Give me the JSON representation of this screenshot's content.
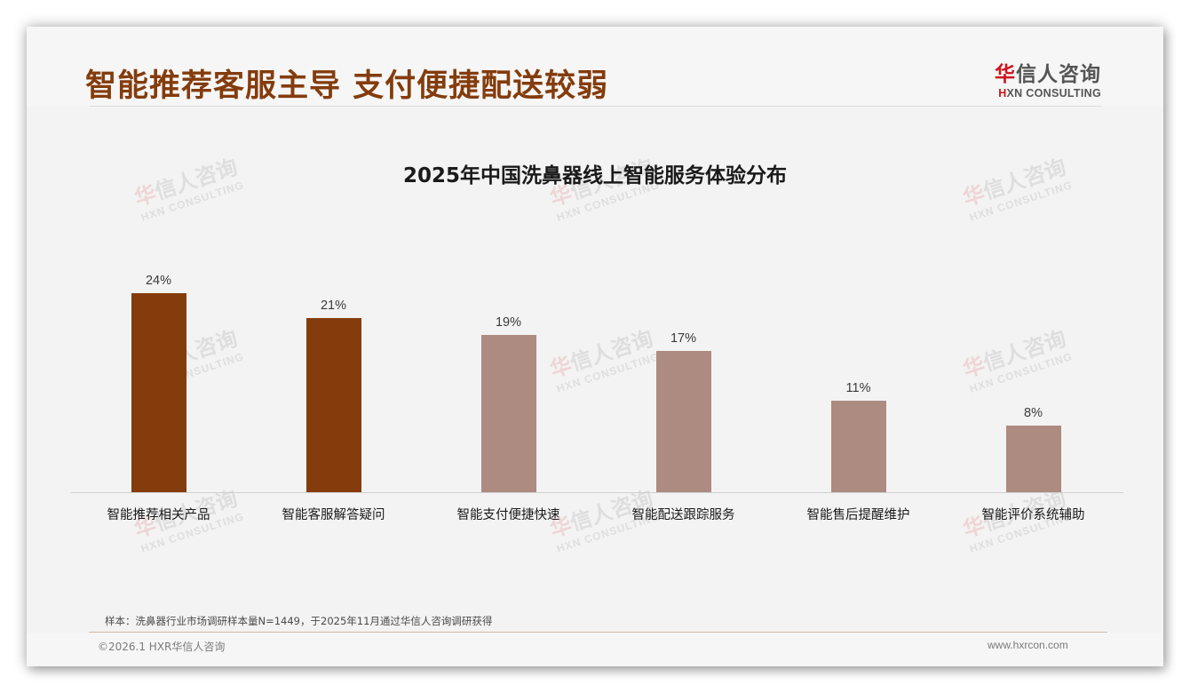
{
  "slide": {
    "title": "智能推荐客服主导 支付便捷配送较弱",
    "logo": {
      "cn_first": "华",
      "cn_rest": "信人咨询",
      "en_first": "H",
      "en_rest": "XN CONSULTING"
    },
    "watermark": {
      "cn_first": "华",
      "cn_rest": "信人咨询",
      "en": "HXN CONSULTING"
    },
    "note": "样本：洗鼻器行业市场调研样本量N=1449，于2025年11月通过华信人咨询调研获得",
    "footer": {
      "copyright": "©2026.1 HXR华信人咨询",
      "website": "www.hxrcon.com"
    }
  },
  "colors": {
    "title": "#843c0c",
    "highlight_bar": "#843c0c",
    "regular_bar": "#ad8b81",
    "logo_red": "#d0121b"
  },
  "chart_data": {
    "type": "bar",
    "title": "2025年中国洗鼻器线上智能服务体验分布",
    "categories": [
      "智能推荐相关产品",
      "智能客服解答疑问",
      "智能支付便捷快速",
      "智能配送跟踪服务",
      "智能售后提醒维护",
      "智能评价系统辅助"
    ],
    "values": [
      24,
      21,
      19,
      17,
      11,
      8
    ],
    "value_labels": [
      "24%",
      "21%",
      "19%",
      "17%",
      "11%",
      "8%"
    ],
    "highlighted": [
      true,
      true,
      false,
      false,
      false,
      false
    ],
    "xlabel": "",
    "ylabel": "",
    "ylim": [
      0,
      25
    ],
    "unit": "%",
    "grid": false,
    "legend": null
  }
}
